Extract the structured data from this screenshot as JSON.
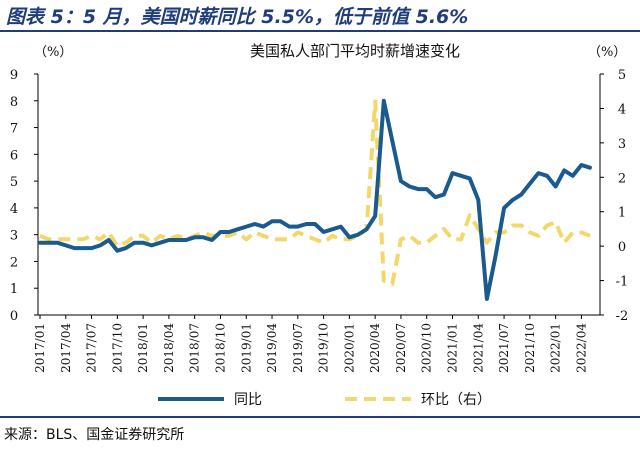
{
  "figure": {
    "title": "图表 5：5 月，美国时薪同比 5.5%，低于前值 5.6%",
    "source": "来源：BLS、国金证券研究所"
  },
  "chart_data": {
    "type": "line",
    "title": "美国私人部门平均时薪增速变化",
    "left_axis_unit": "（%）",
    "right_axis_unit": "（%）",
    "ylim_left": [
      0,
      9
    ],
    "ylim_right": [
      -2,
      5
    ],
    "y_ticks_left": [
      "0",
      "1",
      "2",
      "3",
      "4",
      "5",
      "6",
      "7",
      "8",
      "9"
    ],
    "y_ticks_right": [
      "-2",
      "-1",
      "0",
      "1",
      "2",
      "3",
      "4",
      "5"
    ],
    "x_tick_labels": [
      "2017/01",
      "2017/04",
      "2017/07",
      "2017/10",
      "2018/01",
      "2018/04",
      "2018/07",
      "2018/10",
      "2019/01",
      "2019/04",
      "2019/07",
      "2019/10",
      "2020/01",
      "2020/04",
      "2020/07",
      "2020/10",
      "2021/01",
      "2021/04",
      "2021/07",
      "2021/10",
      "2022/01",
      "2022/04"
    ],
    "x": [
      "2017/01",
      "2017/02",
      "2017/03",
      "2017/04",
      "2017/05",
      "2017/06",
      "2017/07",
      "2017/08",
      "2017/09",
      "2017/10",
      "2017/11",
      "2017/12",
      "2018/01",
      "2018/02",
      "2018/03",
      "2018/04",
      "2018/05",
      "2018/06",
      "2018/07",
      "2018/08",
      "2018/09",
      "2018/10",
      "2018/11",
      "2018/12",
      "2019/01",
      "2019/02",
      "2019/03",
      "2019/04",
      "2019/05",
      "2019/06",
      "2019/07",
      "2019/08",
      "2019/09",
      "2019/10",
      "2019/11",
      "2019/12",
      "2020/01",
      "2020/02",
      "2020/03",
      "2020/04",
      "2020/05",
      "2020/06",
      "2020/07",
      "2020/08",
      "2020/09",
      "2020/10",
      "2020/11",
      "2020/12",
      "2021/01",
      "2021/02",
      "2021/03",
      "2021/04",
      "2021/05",
      "2021/06",
      "2021/07",
      "2021/08",
      "2021/09",
      "2021/10",
      "2021/11",
      "2021/12",
      "2022/01",
      "2022/02",
      "2022/03",
      "2022/04",
      "2022/05"
    ],
    "series": [
      {
        "name": "同比",
        "axis": "left",
        "color": "#1a5a8e",
        "style": "solid",
        "values": [
          2.7,
          2.7,
          2.7,
          2.6,
          2.5,
          2.5,
          2.5,
          2.6,
          2.8,
          2.4,
          2.5,
          2.7,
          2.7,
          2.6,
          2.7,
          2.8,
          2.8,
          2.8,
          2.9,
          2.9,
          2.8,
          3.1,
          3.1,
          3.2,
          3.3,
          3.4,
          3.3,
          3.5,
          3.5,
          3.3,
          3.3,
          3.4,
          3.4,
          3.1,
          3.2,
          3.3,
          2.9,
          3.0,
          3.2,
          3.7,
          8.0,
          6.5,
          5.0,
          4.8,
          4.7,
          4.7,
          4.4,
          4.5,
          5.3,
          5.2,
          5.1,
          4.3,
          0.6,
          2.2,
          4.0,
          4.3,
          4.5,
          4.9,
          5.3,
          5.2,
          4.8,
          5.4,
          5.2,
          5.6,
          5.5
        ]
      },
      {
        "name": "环比（右）",
        "axis": "right",
        "color": "#f3d76a",
        "style": "dashed",
        "values": [
          0.3,
          0.2,
          0.2,
          0.2,
          0.2,
          0.2,
          0.3,
          0.2,
          0.4,
          0.0,
          0.1,
          0.3,
          0.3,
          0.1,
          0.3,
          0.2,
          0.3,
          0.2,
          0.3,
          0.4,
          0.3,
          0.3,
          0.3,
          0.4,
          0.2,
          0.4,
          0.3,
          0.2,
          0.2,
          0.2,
          0.4,
          0.3,
          0.2,
          0.1,
          0.3,
          0.2,
          0.2,
          0.3,
          0.5,
          4.2,
          -1.0,
          -1.1,
          0.2,
          0.3,
          0.1,
          0.1,
          0.3,
          0.5,
          0.2,
          0.2,
          0.9,
          0.5,
          0.1,
          0.4,
          0.4,
          0.6,
          0.6,
          0.4,
          0.3,
          0.6,
          0.7,
          0.1,
          0.4,
          0.4,
          0.3
        ]
      }
    ],
    "legend_position": "bottom",
    "grid": false
  }
}
